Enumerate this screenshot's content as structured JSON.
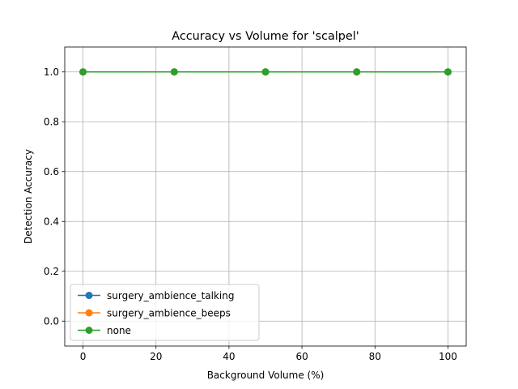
{
  "chart_data": {
    "type": "line",
    "title": "Accuracy vs Volume for 'scalpel'",
    "xlabel": "Background Volume (%)",
    "ylabel": "Detection Accuracy",
    "x": [
      0,
      25,
      50,
      75,
      100
    ],
    "xlim": [
      -5,
      105
    ],
    "ylim": [
      -0.1,
      1.1
    ],
    "xticks": [
      0,
      20,
      40,
      60,
      80,
      100
    ],
    "yticks": [
      0.0,
      0.2,
      0.4,
      0.6,
      0.8,
      1.0
    ],
    "xtick_labels": [
      "0",
      "20",
      "40",
      "60",
      "80",
      "100"
    ],
    "ytick_labels": [
      "0.0",
      "0.2",
      "0.4",
      "0.6",
      "0.8",
      "1.0"
    ],
    "grid": true,
    "legend_position": "lower-left",
    "series": [
      {
        "name": "surgery_ambience_talking",
        "color": "#1f77b4",
        "values": [
          1.0,
          1.0,
          1.0,
          1.0,
          1.0
        ]
      },
      {
        "name": "surgery_ambience_beeps",
        "color": "#ff7f0e",
        "values": [
          1.0,
          1.0,
          1.0,
          1.0,
          1.0
        ]
      },
      {
        "name": "none",
        "color": "#2ca02c",
        "values": [
          1.0,
          1.0,
          1.0,
          1.0,
          1.0
        ]
      }
    ]
  }
}
